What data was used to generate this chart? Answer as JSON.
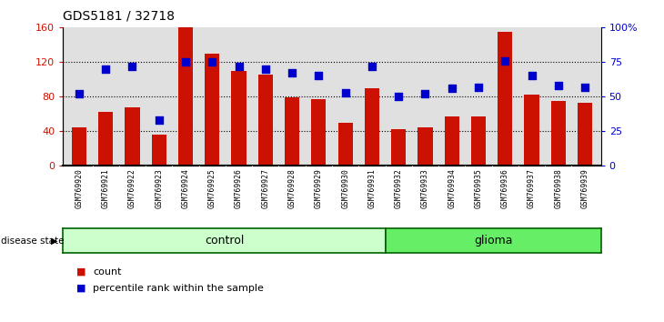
{
  "title": "GDS5181 / 32718",
  "samples": [
    "GSM769920",
    "GSM769921",
    "GSM769922",
    "GSM769923",
    "GSM769924",
    "GSM769925",
    "GSM769926",
    "GSM769927",
    "GSM769928",
    "GSM769929",
    "GSM769930",
    "GSM769931",
    "GSM769932",
    "GSM769933",
    "GSM769934",
    "GSM769935",
    "GSM769936",
    "GSM769937",
    "GSM769938",
    "GSM769939"
  ],
  "counts": [
    44,
    62,
    68,
    36,
    160,
    130,
    110,
    105,
    79,
    77,
    50,
    90,
    42,
    44,
    57,
    57,
    155,
    82,
    75,
    73
  ],
  "percentiles": [
    52,
    70,
    72,
    33,
    75,
    75,
    72,
    70,
    67,
    65,
    53,
    72,
    50,
    52,
    56,
    57,
    76,
    65,
    58,
    57
  ],
  "bar_color": "#CC1100",
  "dot_color": "#0000CC",
  "control_count": 12,
  "control_label": "control",
  "glioma_label": "glioma",
  "control_color": "#CCFFCC",
  "glioma_color": "#66EE66",
  "disease_label": "disease state",
  "left_axis_color": "#CC1100",
  "right_axis_color": "#0000CC",
  "ylim_left": [
    0,
    160
  ],
  "yticks_left": [
    0,
    40,
    80,
    120,
    160
  ],
  "ytick_labels_left": [
    "0",
    "40",
    "80",
    "120",
    "160"
  ],
  "yticks_right_pct": [
    0,
    25,
    50,
    75,
    100
  ],
  "ytick_labels_right": [
    "0",
    "25",
    "50",
    "75",
    "100%"
  ],
  "legend_count": "count",
  "legend_pct": "percentile rank within the sample",
  "plot_bg": "#E0E0E0",
  "tick_label_bg": "#D0D0D0"
}
